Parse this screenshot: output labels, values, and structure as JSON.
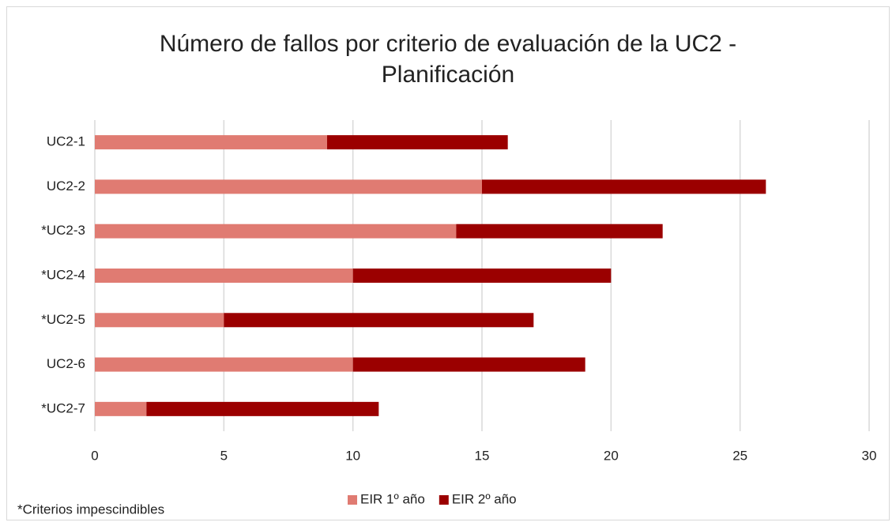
{
  "chart_data": {
    "type": "bar",
    "orientation": "horizontal",
    "stacked": true,
    "title": "Número de fallos por criterio de evaluación de la UC2 - Planificación",
    "categories": [
      "UC2-1",
      "UC2-2",
      "*UC2-3",
      "*UC2-4",
      "*UC2-5",
      "UC2-6",
      "*UC2-7"
    ],
    "series": [
      {
        "name": "EIR 1º año",
        "color": "#e07b72",
        "values": [
          9,
          15,
          14,
          10,
          5,
          10,
          2
        ]
      },
      {
        "name": "EIR 2º año",
        "color": "#9b0000",
        "values": [
          7,
          11,
          8,
          10,
          12,
          9,
          9
        ]
      }
    ],
    "xlim": [
      0,
      30
    ],
    "xticks": [
      0,
      5,
      10,
      15,
      20,
      25,
      30
    ],
    "grid": true,
    "legend": "bottom",
    "annotation": "*Criterios impescindibles"
  }
}
